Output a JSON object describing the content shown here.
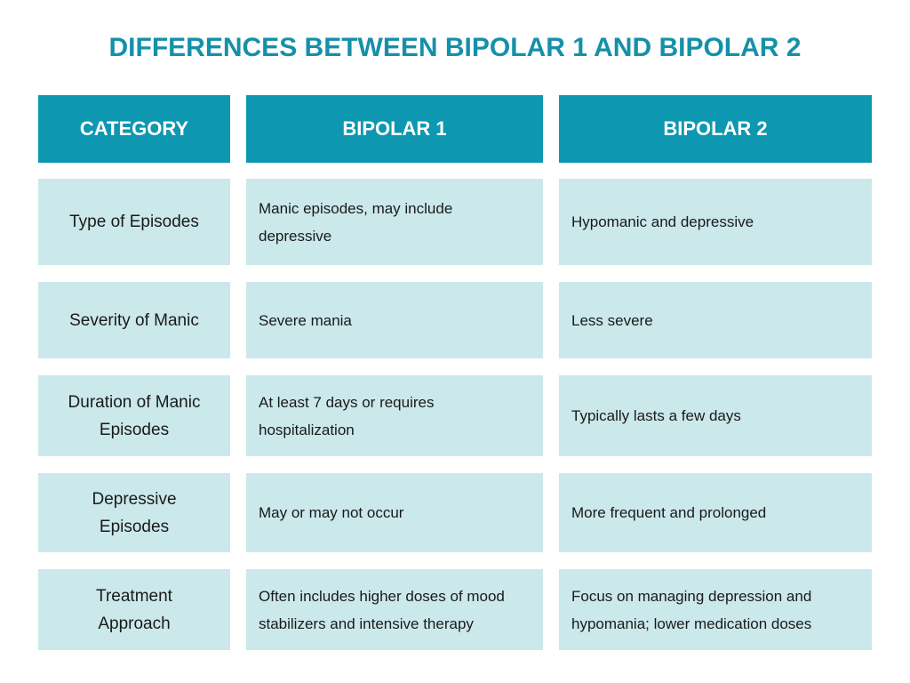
{
  "title": "DIFFERENCES BETWEEN BIPOLAR 1 AND BIPOLAR 2",
  "colors": {
    "accent": "#0e97b0",
    "title": "#1590a9",
    "cell_bg": "#cbe8eb"
  },
  "headers": [
    "CATEGORY",
    "BIPOLAR 1",
    "BIPOLAR 2"
  ],
  "rows": [
    {
      "category": "Type of Episodes",
      "bipolar1": "Manic episodes, may include depressive",
      "bipolar2": "Hypomanic and depressive"
    },
    {
      "category": "Severity of Manic",
      "bipolar1": "Severe mania",
      "bipolar2": "Less severe"
    },
    {
      "category": "Duration of Manic Episodes",
      "bipolar1": "At least 7 days or requires hospitalization",
      "bipolar2": "Typically lasts a few days"
    },
    {
      "category": "Depressive Episodes",
      "bipolar1": "May or may not occur",
      "bipolar2": "More frequent and prolonged"
    },
    {
      "category": "Treatment Approach",
      "bipolar1": "Often includes higher doses of mood stabilizers and intensive therapy",
      "bipolar2": "Focus on managing depression and hypomania; lower medication doses"
    }
  ]
}
